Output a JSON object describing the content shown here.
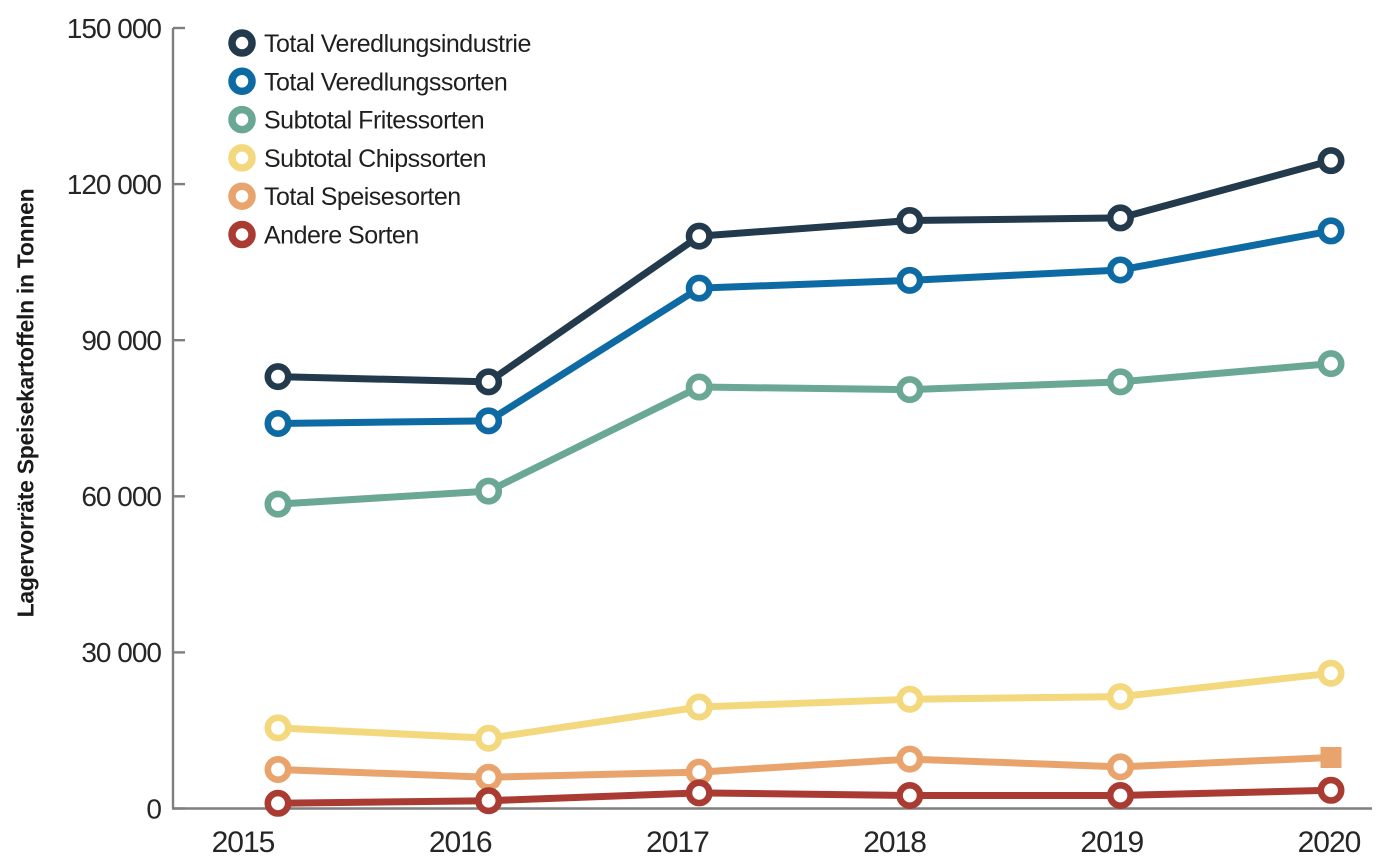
{
  "page": {
    "background_color": "#ffffff",
    "text_color": "#262626",
    "axis_color": "#7f7f7f"
  },
  "chart_data": {
    "type": "line",
    "title": "",
    "xlabel": "",
    "ylabel": "Lagervorräte Speisekartoffeln in Tonnen",
    "ylim": [
      0,
      150000
    ],
    "grid": false,
    "legend_position": "top-left-inside",
    "y_tick_values": [
      0,
      30000,
      60000,
      90000,
      120000,
      150000
    ],
    "y_tick_labels": [
      "0",
      "30 000",
      "60 000",
      "90 000",
      "120 000",
      "150 000"
    ],
    "categories": [
      "2015",
      "2016",
      "2017",
      "2018",
      "2019",
      "2020"
    ],
    "series": [
      {
        "name": "Total Veredlungsindustrie",
        "color": "#223A4C",
        "marker": "circle",
        "values": [
          83000,
          82000,
          110000,
          113000,
          113500,
          124500
        ]
      },
      {
        "name": "Total Veredlungssorten",
        "color": "#0E6AA3",
        "marker": "circle",
        "values": [
          74000,
          74500,
          100000,
          101500,
          103500,
          111000
        ]
      },
      {
        "name": "Subtotal Fritessorten",
        "color": "#6BA795",
        "marker": "circle",
        "values": [
          58500,
          61000,
          81000,
          80500,
          82000,
          85500
        ]
      },
      {
        "name": "Subtotal Chipssorten",
        "color": "#F4D87D",
        "marker": "circle",
        "values": [
          15500,
          13500,
          19500,
          21000,
          21500,
          26000
        ]
      },
      {
        "name": "Total Speisesorten",
        "color": "#E9A46D",
        "marker": "circle",
        "last_marker": "square",
        "values": [
          7500,
          6000,
          7000,
          9500,
          8000,
          9800
        ]
      },
      {
        "name": "Andere Sorten",
        "color": "#A93B33",
        "marker": "circle",
        "values": [
          1000,
          1500,
          3000,
          2500,
          2500,
          3500
        ]
      }
    ]
  }
}
